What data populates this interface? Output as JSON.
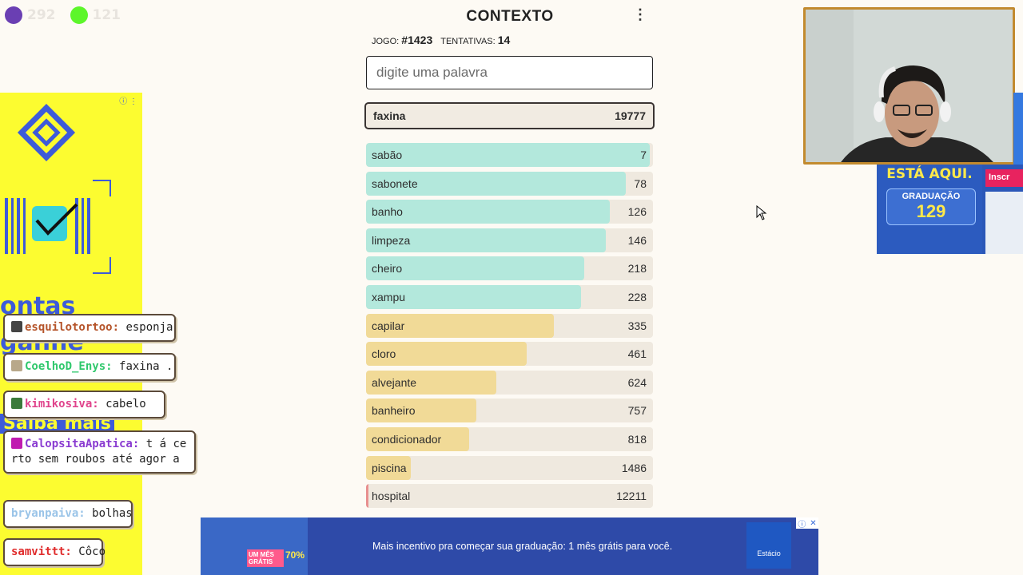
{
  "stream_overlay": {
    "counters": [
      {
        "color": "#6a3fb3",
        "value": "292"
      },
      {
        "color": "#5df62a",
        "value": "121"
      }
    ]
  },
  "game": {
    "title": "CONTEXTO",
    "game_label": "JOGO:",
    "game_number": "#1423",
    "attempts_label": "TENTATIVAS:",
    "attempts": "14",
    "search_placeholder": "digite uma palavra",
    "current_guess": {
      "word": "faxina",
      "rank": "19777"
    },
    "guesses": [
      {
        "word": "sabão",
        "rank": "7",
        "fill": 0.99,
        "color": "#b3e8dc"
      },
      {
        "word": "sabonete",
        "rank": "78",
        "fill": 0.905,
        "color": "#b3e8dc"
      },
      {
        "word": "banho",
        "rank": "126",
        "fill": 0.85,
        "color": "#b3e8dc"
      },
      {
        "word": "limpeza",
        "rank": "146",
        "fill": 0.835,
        "color": "#b3e8dc"
      },
      {
        "word": "cheiro",
        "rank": "218",
        "fill": 0.76,
        "color": "#b3e8dc"
      },
      {
        "word": "xampu",
        "rank": "228",
        "fill": 0.75,
        "color": "#b3e8dc"
      },
      {
        "word": "capilar",
        "rank": "335",
        "fill": 0.655,
        "color": "#f1da97"
      },
      {
        "word": "cloro",
        "rank": "461",
        "fill": 0.56,
        "color": "#f1da97"
      },
      {
        "word": "alvejante",
        "rank": "624",
        "fill": 0.455,
        "color": "#f1da97"
      },
      {
        "word": "banheiro",
        "rank": "757",
        "fill": 0.385,
        "color": "#f1da97"
      },
      {
        "word": "condicionador",
        "rank": "818",
        "fill": 0.36,
        "color": "#f1da97"
      },
      {
        "word": "piscina",
        "rank": "1486",
        "fill": 0.155,
        "color": "#f1da97"
      },
      {
        "word": "hospital",
        "rank": "12211",
        "fill": 0.0,
        "color": "#f0a3a3"
      }
    ]
  },
  "chat": [
    {
      "user": "esquilotortoo:",
      "text": "esponja",
      "user_color": "#b5542a"
    },
    {
      "user": "CoelhoD_Enys:",
      "text": "faxina .",
      "user_color": "#2fc86c"
    },
    {
      "user": "kimikosiva:",
      "text": "cabelo",
      "user_color": "#e0448c"
    },
    {
      "user": "CalopsitaApatica:",
      "text": "t á certo sem roubos até agor a",
      "user_color": "#8a3bd1"
    },
    {
      "user": "bryanpaiva:",
      "text": "bolhas",
      "user_color": "#9ac4e8"
    },
    {
      "user": "samvittt:",
      "text": "Côco",
      "user_color": "#e02c2c"
    }
  ],
  "ads": {
    "left_text_lines": [
      "ontas",
      "ganhe",
      "Saiba mais"
    ],
    "right_heading": "ESTÁ AQUI.",
    "right_label": "GRADUAÇÃO",
    "right_price": "129",
    "right_cta": "Inscr",
    "bottom_message": "Mais incentivo pra começar sua graduação: 1 mês grátis para você.",
    "bottom_promo": "UM MÊS GRÁTIS",
    "bottom_discount": "70%",
    "bottom_brand": "Estácio"
  }
}
